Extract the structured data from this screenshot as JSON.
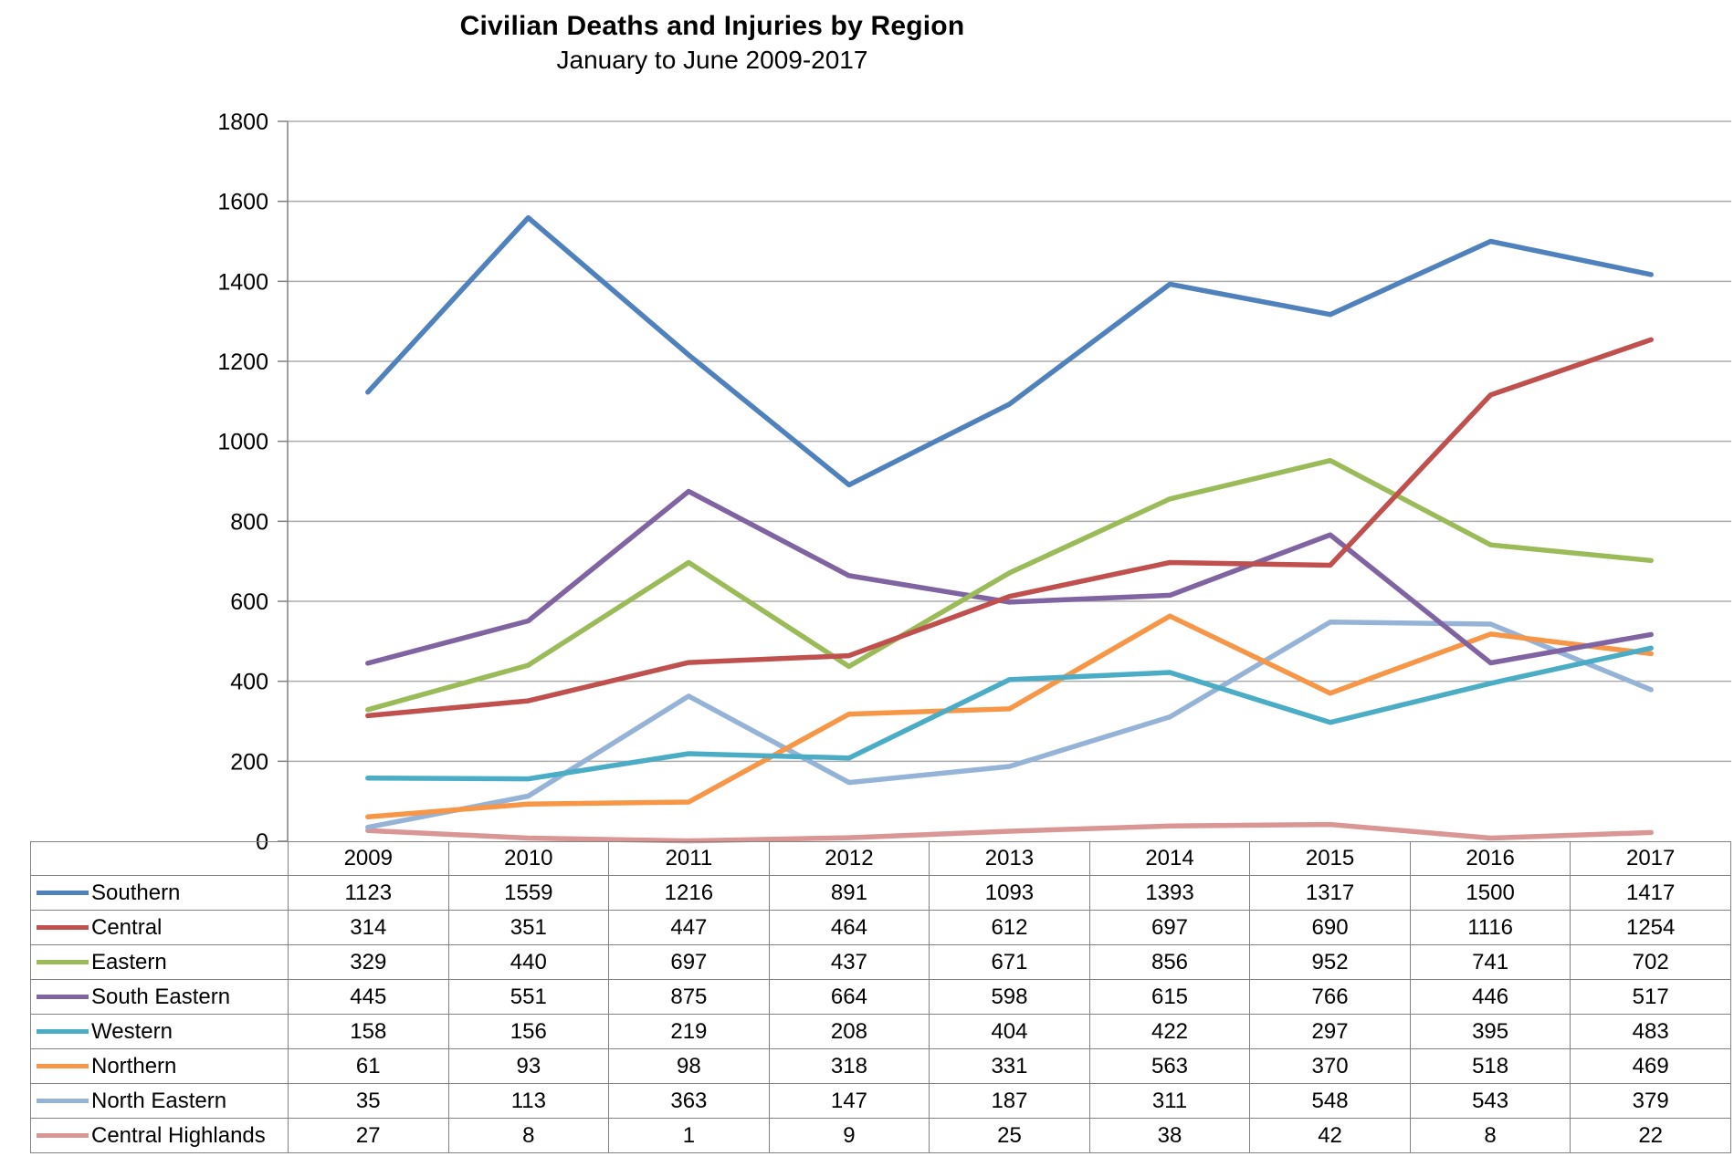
{
  "chart_data": {
    "type": "line",
    "title": "Civilian Deaths and Injuries by Region",
    "subtitle": "January to June 2009-2017",
    "xlabel": "",
    "ylabel": "",
    "categories": [
      "2009",
      "2010",
      "2011",
      "2012",
      "2013",
      "2014",
      "2015",
      "2016",
      "2017"
    ],
    "series": [
      {
        "name": "Southern",
        "color": "#4F81BD",
        "values": [
          1123,
          1559,
          1216,
          891,
          1093,
          1393,
          1317,
          1500,
          1417
        ]
      },
      {
        "name": "Central",
        "color": "#C0504D",
        "values": [
          314,
          351,
          447,
          464,
          612,
          697,
          690,
          1116,
          1254
        ]
      },
      {
        "name": "Eastern",
        "color": "#9BBB59",
        "values": [
          329,
          440,
          697,
          437,
          671,
          856,
          952,
          741,
          702
        ]
      },
      {
        "name": "South Eastern",
        "color": "#8064A2",
        "values": [
          445,
          551,
          875,
          664,
          598,
          615,
          766,
          446,
          517
        ]
      },
      {
        "name": "Western",
        "color": "#4BACC6",
        "values": [
          158,
          156,
          219,
          208,
          404,
          422,
          297,
          395,
          483
        ]
      },
      {
        "name": "Northern",
        "color": "#F79646",
        "values": [
          61,
          93,
          98,
          318,
          331,
          563,
          370,
          518,
          469
        ]
      },
      {
        "name": "North Eastern",
        "color": "#95B3D7",
        "values": [
          35,
          113,
          363,
          147,
          187,
          311,
          548,
          543,
          379
        ]
      },
      {
        "name": "Central Highlands",
        "color": "#D99694",
        "values": [
          27,
          8,
          1,
          9,
          25,
          38,
          42,
          8,
          22
        ]
      }
    ],
    "ylim": [
      0,
      1800
    ],
    "ytick_step": 200,
    "grid": true,
    "legend_position": "data-table-left",
    "series_draw_order": "first-on-top"
  },
  "colors": {
    "gridline": "#ABABAB",
    "axis": "#808080",
    "table_border": "#828282",
    "text": "#000000",
    "background": "#FFFFFF"
  }
}
